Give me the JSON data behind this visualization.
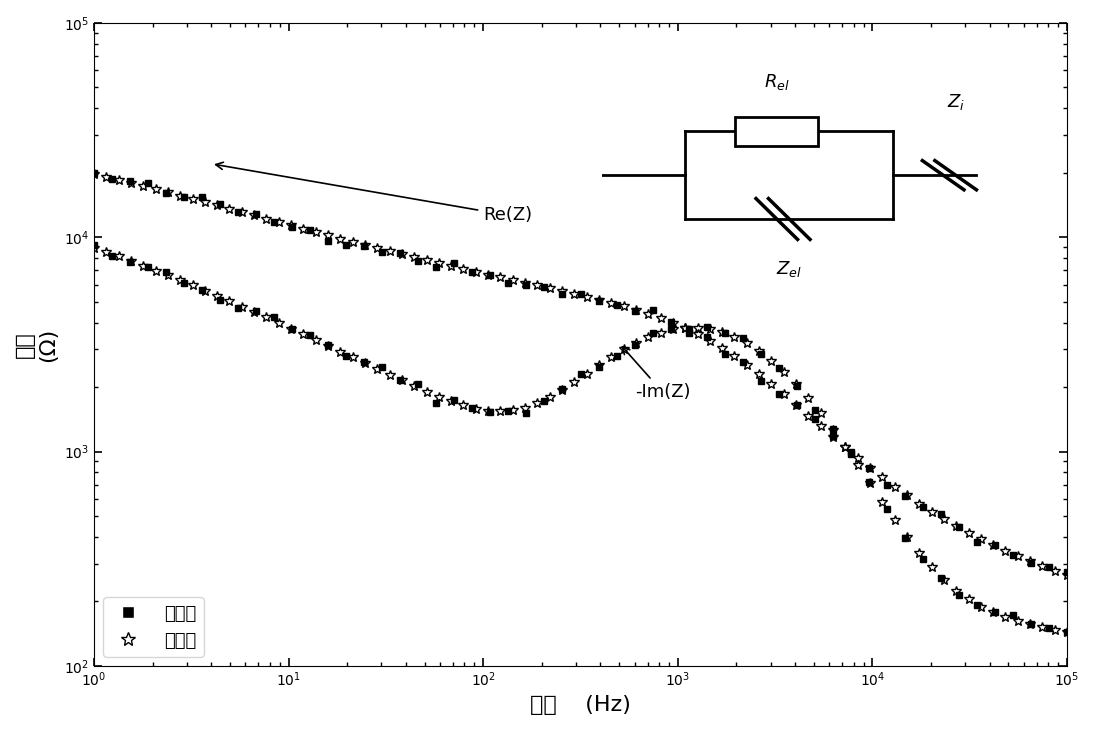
{
  "title": "",
  "xlabel_cn": "频率",
  "xlabel_en": "(Hz)",
  "ylabel_cn": "阻抗",
  "ylabel_en": "(Ω)",
  "xlim": [
    1,
    100000
  ],
  "ylim": [
    100,
    100000
  ],
  "legend_measured": "测量値",
  "legend_simulated": "模拟値",
  "label_ReZ": "Re(Z)",
  "label_ImZ": "-Im(Z)",
  "background_color": "#ffffff",
  "plot_bg_color": "#ffffff"
}
